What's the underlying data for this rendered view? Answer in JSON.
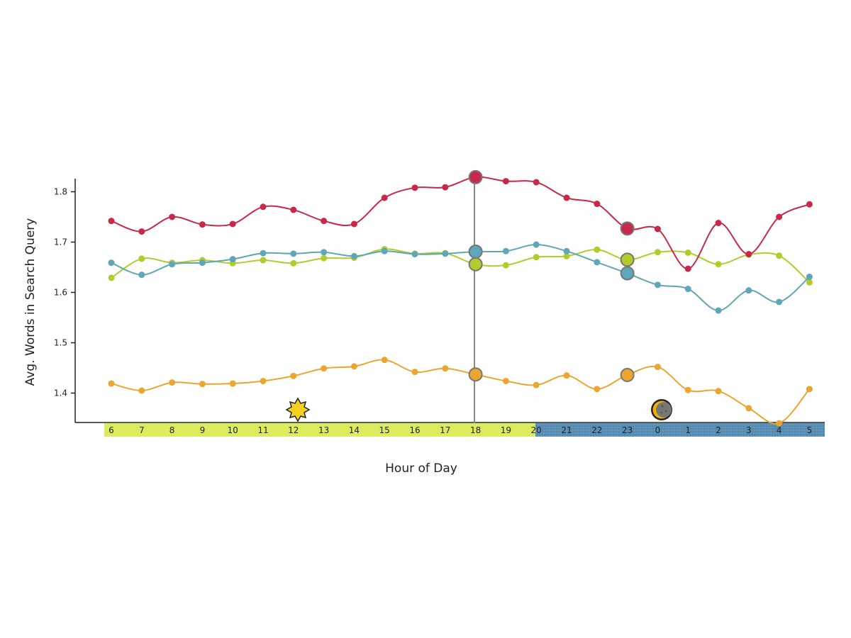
{
  "chart_data": {
    "type": "line",
    "title": "",
    "xlabel": "Hour of Day",
    "ylabel": "Avg. Words in Search Query",
    "ylim": [
      1.34,
      1.84
    ],
    "y_ticks": [
      "1.4",
      "1.5",
      "1.6",
      "1.7",
      "1.8"
    ],
    "categories": [
      "6",
      "7",
      "8",
      "9",
      "10",
      "11",
      "12",
      "13",
      "14",
      "15",
      "16",
      "17",
      "18",
      "19",
      "20",
      "21",
      "22",
      "23",
      "0",
      "1",
      "2",
      "3",
      "4",
      "5"
    ],
    "day_hours": [
      "6",
      "7",
      "8",
      "9",
      "10",
      "11",
      "12",
      "13",
      "14",
      "15",
      "16",
      "17",
      "18",
      "19"
    ],
    "night_hours": [
      "20",
      "21",
      "22",
      "23",
      "0",
      "1",
      "2",
      "3",
      "4",
      "5"
    ],
    "highlighted_hours": [
      "18",
      "23"
    ],
    "crosshair_hour": "18",
    "series": [
      {
        "color": "#c8294a",
        "values": [
          1.742,
          1.721,
          1.75,
          1.735,
          1.736,
          1.77,
          1.764,
          1.742,
          1.736,
          1.788,
          1.808,
          1.809,
          1.829,
          1.821,
          1.819,
          1.788,
          1.776,
          1.727,
          1.726,
          1.647,
          1.738,
          1.676,
          1.75,
          1.775
        ]
      },
      {
        "color": "#5ea7b8",
        "values": [
          1.659,
          1.635,
          1.656,
          1.659,
          1.666,
          1.678,
          1.677,
          1.68,
          1.672,
          1.682,
          1.676,
          1.677,
          1.681,
          1.682,
          1.695,
          1.682,
          1.66,
          1.638,
          1.615,
          1.607,
          1.564,
          1.604,
          1.581,
          1.631
        ]
      },
      {
        "color": "#b3cb2b",
        "values": [
          1.629,
          1.667,
          1.659,
          1.664,
          1.658,
          1.664,
          1.658,
          1.668,
          1.669,
          1.686,
          1.677,
          1.678,
          1.656,
          1.654,
          1.67,
          1.672,
          1.685,
          1.665,
          1.68,
          1.679,
          1.656,
          1.675,
          1.673,
          1.62
        ]
      },
      {
        "color": "#eaa62f",
        "values": [
          1.419,
          1.405,
          1.421,
          1.418,
          1.419,
          1.424,
          1.434,
          1.449,
          1.453,
          1.466,
          1.442,
          1.449,
          1.437,
          1.424,
          1.416,
          1.435,
          1.408,
          1.436,
          1.452,
          1.406,
          1.404,
          1.37,
          1.34,
          1.408
        ]
      }
    ],
    "grid": false,
    "legend": "below (cut off)"
  },
  "colors": {
    "axis": "#222222",
    "day_band": "#dcec5c",
    "night_band": "#5a8fb5",
    "crosshair": "#888888"
  },
  "icons": {
    "day": "sun-icon",
    "night": "moon-icon"
  }
}
